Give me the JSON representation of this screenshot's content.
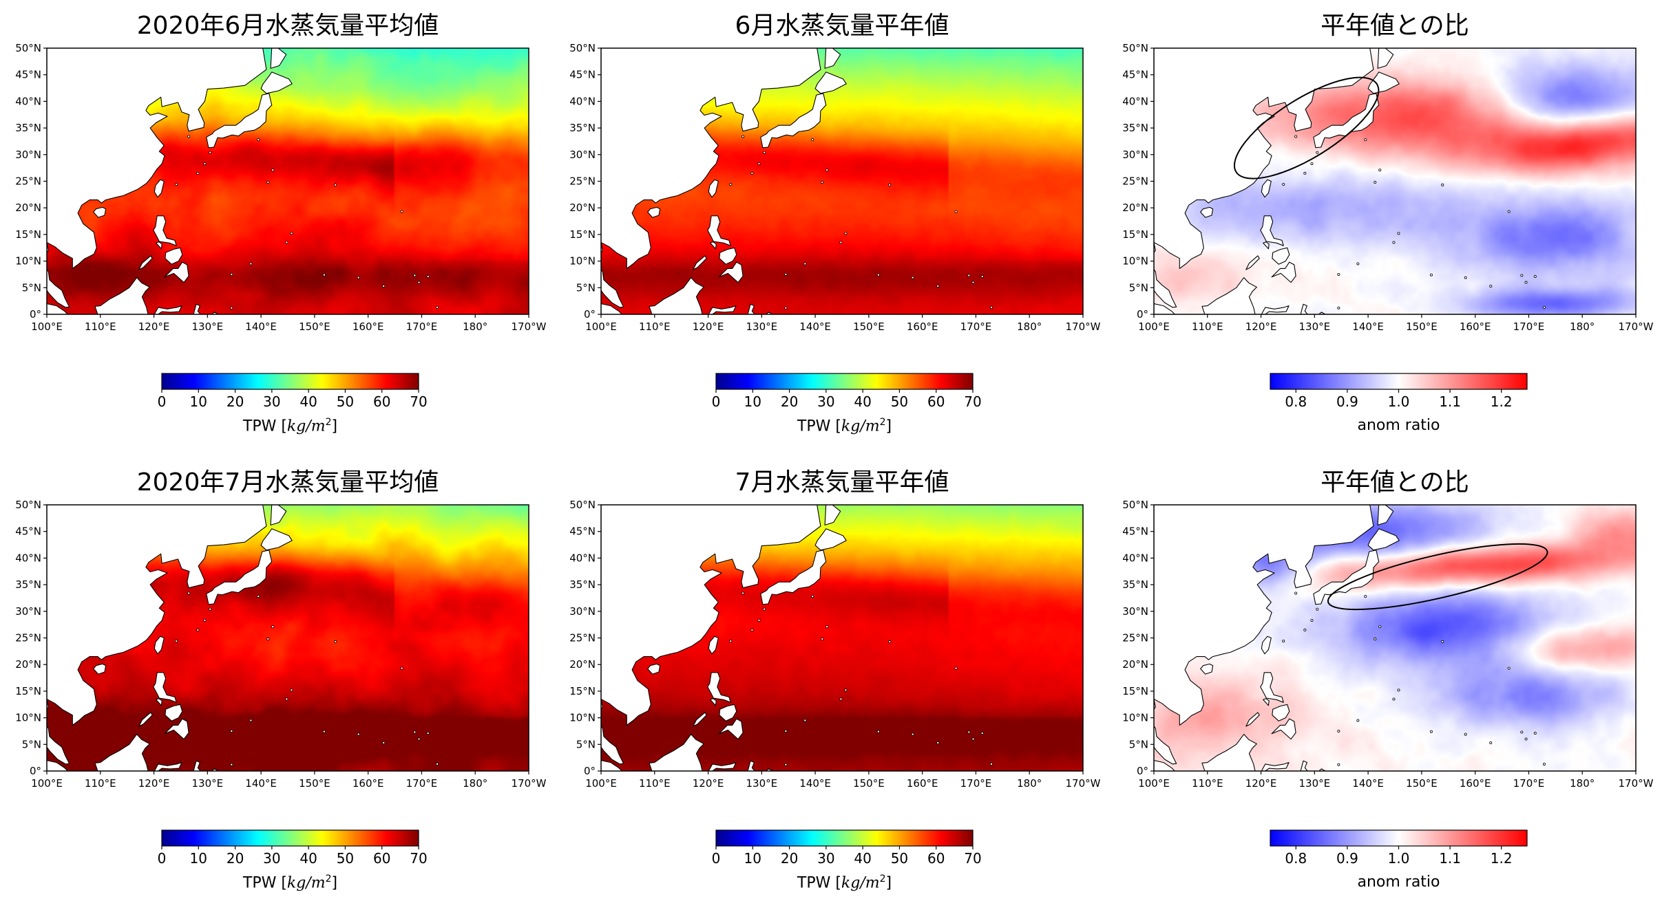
{
  "colors": {
    "jet": [
      "#00008f",
      "#0000ff",
      "#0080ff",
      "#00ffff",
      "#80ff80",
      "#ffff00",
      "#ff8000",
      "#ff0000",
      "#800000"
    ],
    "bwr": [
      "#0000ff",
      "#ffffff",
      "#ff0000"
    ]
  },
  "lat_ticks": [
    "50°N",
    "45°N",
    "40°N",
    "35°N",
    "30°N",
    "25°N",
    "20°N",
    "15°N",
    "10°N",
    "5°N",
    "0°"
  ],
  "lon_ticks": [
    "100°E",
    "110°E",
    "120°E",
    "130°E",
    "140°E",
    "150°E",
    "160°E",
    "170°E",
    "180°",
    "170°W"
  ],
  "colorbars": {
    "tpw": {
      "ticks": [
        "0",
        "10",
        "20",
        "30",
        "40",
        "50",
        "60",
        "70"
      ],
      "label_text": "TPW ",
      "label_unit": "[kg/m",
      "label_sup": "2",
      "label_close": "]",
      "range": [
        0,
        70
      ]
    },
    "ratio": {
      "ticks": [
        "0.8",
        "0.9",
        "1.0",
        "1.1",
        "1.2"
      ],
      "label": "anom ratio",
      "range": [
        0.75,
        1.25
      ]
    }
  },
  "panels": [
    {
      "title": "2020年6月水蒸気量平均値",
      "kind": "tpw",
      "month": "jun",
      "variant": "obs"
    },
    {
      "title": "6月水蒸気量平年値",
      "kind": "tpw",
      "month": "jun",
      "variant": "clim"
    },
    {
      "title": "平年値との比",
      "kind": "ratio",
      "month": "jun",
      "variant": "ratio"
    },
    {
      "title": "2020年7月水蒸気量平均値",
      "kind": "tpw",
      "month": "jul",
      "variant": "obs"
    },
    {
      "title": "7月水蒸気量平年値",
      "kind": "tpw",
      "month": "jul",
      "variant": "clim"
    },
    {
      "title": "平年値との比",
      "kind": "ratio",
      "month": "jul",
      "variant": "ratio"
    }
  ],
  "highlight_ellipses": [
    {
      "panel": 2,
      "center_lon": 128.5,
      "center_lat": 35.0,
      "semi_major_deg": 15.5,
      "semi_minor_deg": 5.5,
      "rotation_deg": -32
    },
    {
      "panel": 5,
      "center_lon": 153.0,
      "center_lat": 36.5,
      "semi_major_deg": 21.0,
      "semi_minor_deg": 4.0,
      "rotation_deg": -13
    }
  ]
}
